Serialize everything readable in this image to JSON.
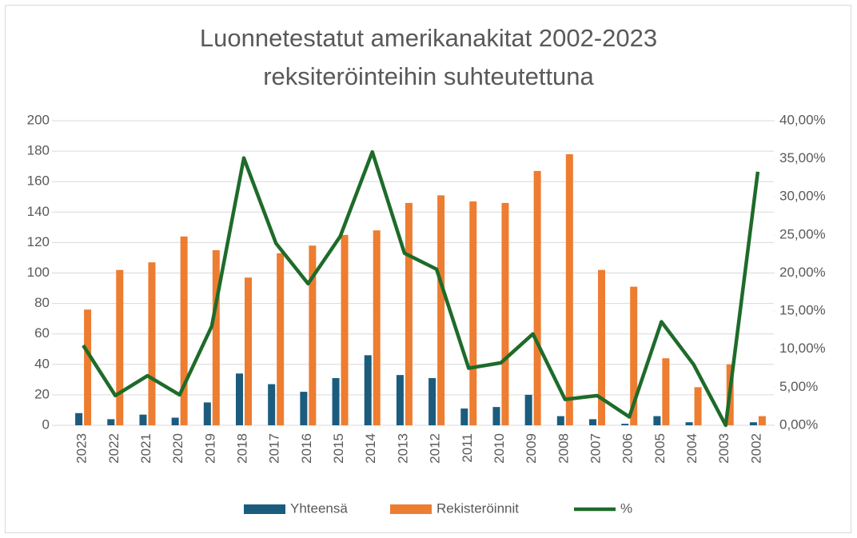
{
  "chart_data": {
    "type": "bar-line",
    "title": [
      "Luonnetestatut amerikanakitat 2002-2023",
      "reksiteröinteihin suhteutettuna"
    ],
    "categories": [
      "2023",
      "2022",
      "2021",
      "2020",
      "2019",
      "2018",
      "2017",
      "2016",
      "2015",
      "2014",
      "2013",
      "2012",
      "2011",
      "2010",
      "2009",
      "2008",
      "2007",
      "2006",
      "2005",
      "2004",
      "2003",
      "2002"
    ],
    "series": [
      {
        "name": "Yhteensä",
        "type": "bar",
        "color": "#1b5c7e",
        "values": [
          8,
          4,
          7,
          5,
          15,
          34,
          27,
          22,
          31,
          46,
          33,
          31,
          11,
          12,
          20,
          6,
          4,
          1,
          6,
          2,
          0,
          2
        ]
      },
      {
        "name": "Rekisteröinnit",
        "type": "bar",
        "color": "#ed7d31",
        "values": [
          76,
          102,
          107,
          124,
          115,
          97,
          113,
          118,
          125,
          128,
          146,
          151,
          147,
          146,
          167,
          178,
          102,
          91,
          44,
          25,
          40,
          6
        ]
      },
      {
        "name": "%",
        "type": "line",
        "axis": "y2",
        "color": "#1e6b2a",
        "values": [
          10.5,
          3.9,
          6.5,
          4.0,
          13.0,
          35.1,
          23.9,
          18.6,
          24.8,
          35.9,
          22.6,
          20.5,
          7.5,
          8.2,
          12.0,
          3.4,
          3.9,
          1.1,
          13.6,
          8.0,
          0,
          33.3
        ]
      }
    ],
    "ylim": [
      0,
      200
    ],
    "yticks": [
      0,
      20,
      40,
      60,
      80,
      100,
      120,
      140,
      160,
      180,
      200
    ],
    "y2lim": [
      0,
      40
    ],
    "y2ticks": [
      {
        "value": 0,
        "label": "0,00%"
      },
      {
        "value": 5,
        "label": "5,00%"
      },
      {
        "value": 10,
        "label": "10,00%"
      },
      {
        "value": 15,
        "label": "15,00%"
      },
      {
        "value": 20,
        "label": "20,00%"
      },
      {
        "value": 25,
        "label": "25,00%"
      },
      {
        "value": 30,
        "label": "30,00%"
      },
      {
        "value": 35,
        "label": "35,00%"
      },
      {
        "value": 40,
        "label": "40,00%"
      }
    ],
    "grid": true,
    "legend": "bottom"
  }
}
